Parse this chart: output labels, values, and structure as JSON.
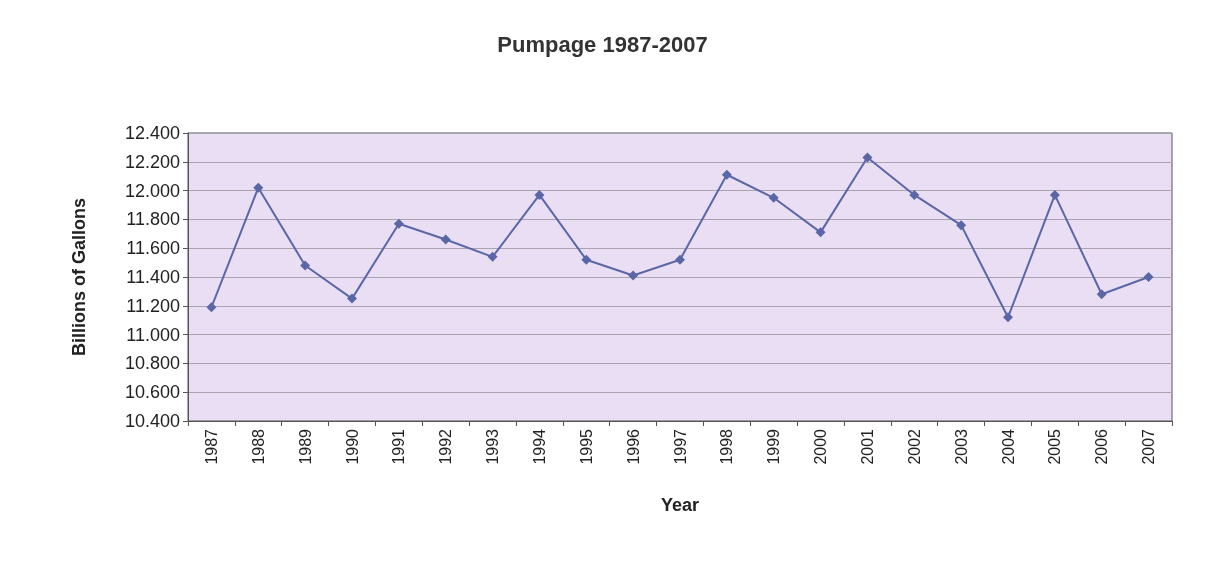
{
  "chart_data": {
    "type": "line",
    "title": "Pumpage 1987-2007",
    "xlabel": "Year",
    "ylabel": "Billions of Gallons",
    "categories": [
      "1987",
      "1988",
      "1989",
      "1990",
      "1991",
      "1992",
      "1993",
      "1994",
      "1995",
      "1996",
      "1997",
      "1998",
      "1999",
      "2000",
      "2001",
      "2002",
      "2003",
      "2004",
      "2005",
      "2006",
      "2007"
    ],
    "series": [
      {
        "color": "#5a67a6",
        "values": [
          11.19,
          12.02,
          11.48,
          11.25,
          11.77,
          11.66,
          11.54,
          11.97,
          11.52,
          11.41,
          11.52,
          12.11,
          11.95,
          11.71,
          12.23,
          11.97,
          11.76,
          11.12,
          11.97,
          11.28,
          11.4
        ]
      }
    ],
    "ylim": [
      10.4,
      12.4
    ],
    "yticks": [
      {
        "value": 10.4,
        "label": "10.400"
      },
      {
        "value": 10.6,
        "label": "10.600"
      },
      {
        "value": 10.8,
        "label": "10.800"
      },
      {
        "value": 11,
        "label": "11.000"
      },
      {
        "value": 11.2,
        "label": "11.200"
      },
      {
        "value": 11.4,
        "label": "11.400"
      },
      {
        "value": 11.6,
        "label": "11.600"
      },
      {
        "value": 11.8,
        "label": "11.800"
      },
      {
        "value": 12,
        "label": "12.000"
      },
      {
        "value": 12.2,
        "label": "12.200"
      },
      {
        "value": 12.4,
        "label": "12.400"
      }
    ],
    "grid": "y",
    "marker": "diamond",
    "line_style": "solid"
  }
}
